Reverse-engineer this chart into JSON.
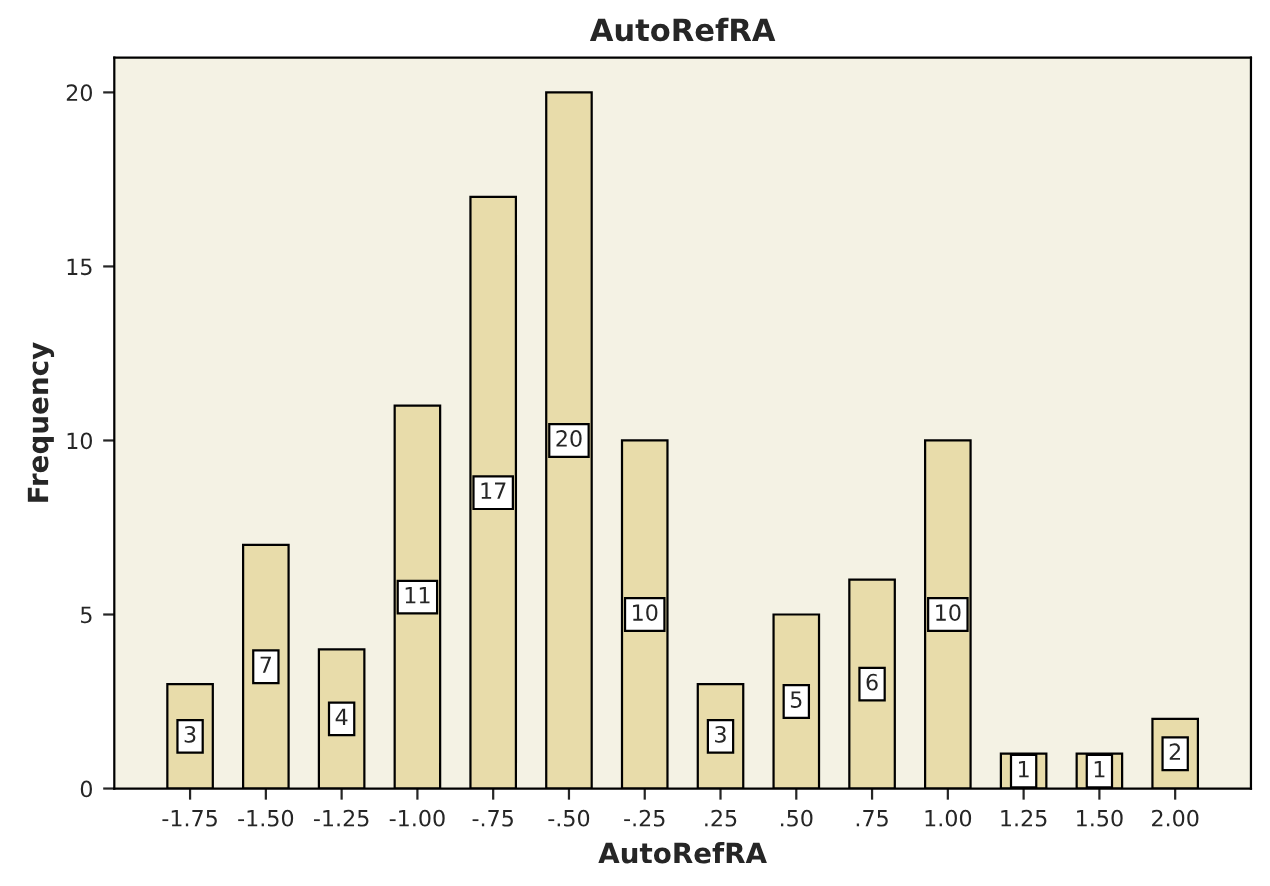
{
  "chart_data": {
    "type": "bar",
    "title": "AutoRefRA",
    "xlabel": "AutoRefRA",
    "ylabel": "Frequency",
    "categories": [
      "-1.75",
      "-1.50",
      "-1.25",
      "-1.00",
      "-.75",
      "-.50",
      "-.25",
      ".25",
      ".50",
      ".75",
      "1.00",
      "1.25",
      "1.50",
      "2.00"
    ],
    "values": [
      3,
      7,
      4,
      11,
      17,
      20,
      10,
      3,
      5,
      6,
      10,
      1,
      1,
      2
    ],
    "color": "#e8dcaa",
    "ylim": [
      0,
      21
    ],
    "yticks": [
      0,
      5,
      10,
      15,
      20
    ],
    "grid": false,
    "data_labels": true
  }
}
